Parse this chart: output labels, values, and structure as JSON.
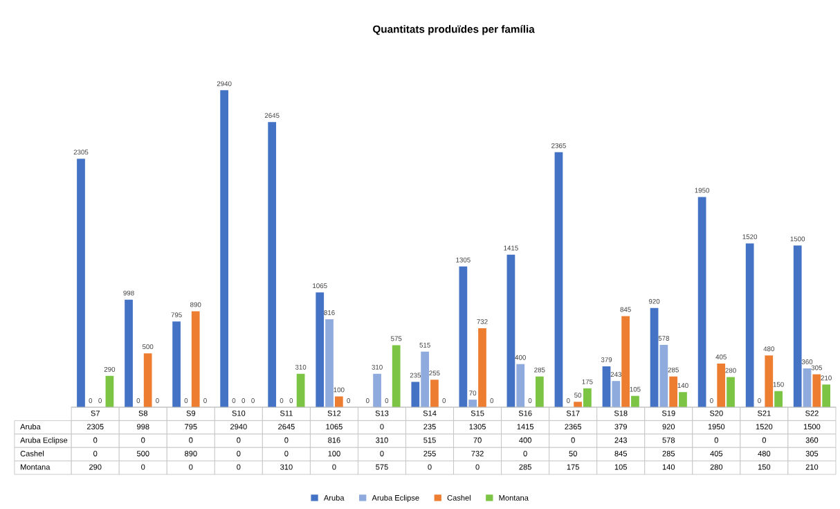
{
  "chart_data": {
    "type": "bar",
    "title": "Quantitats produïdes per família",
    "categories": [
      "S7",
      "S8",
      "S9",
      "S10",
      "S11",
      "S12",
      "S13",
      "S14",
      "S15",
      "S16",
      "S17",
      "S18",
      "S19",
      "S20",
      "S21",
      "S22"
    ],
    "series": [
      {
        "name": "Aruba",
        "color": "#4472c4",
        "values": [
          2305,
          998,
          795,
          2940,
          2645,
          1065,
          0,
          235,
          1305,
          1415,
          2365,
          379,
          920,
          1950,
          1520,
          1500
        ],
        "value_labels": [
          "2305",
          "998",
          "795",
          "2940",
          "2645",
          "1065",
          "0",
          "235",
          "1305",
          "1415",
          "2365",
          "379",
          "920",
          "1950",
          "1520",
          "1500"
        ]
      },
      {
        "name": "Aruba Eclipse",
        "color": "#8faadc",
        "values": [
          0,
          0,
          0,
          0,
          0,
          816,
          310,
          515,
          70,
          400,
          0,
          243,
          578,
          0,
          0,
          360
        ],
        "value_labels": [
          "0",
          "0",
          "0",
          "0",
          "0",
          "816",
          "310",
          "515",
          "70",
          "400",
          "0",
          "243",
          "578",
          "0",
          "0",
          "360"
        ]
      },
      {
        "name": "Cashel",
        "color": "#ed7d31",
        "values": [
          0,
          500,
          890,
          0,
          0,
          100,
          0,
          255,
          732,
          0,
          50,
          845,
          285,
          405,
          480,
          305
        ],
        "value_labels": [
          "0",
          "500",
          "890",
          "0",
          "0",
          "100",
          "0",
          "255",
          "732",
          "0",
          "50",
          "845",
          "285",
          "405",
          "480",
          "305"
        ]
      },
      {
        "name": "Montana",
        "color": "#7cc443",
        "values": [
          290,
          0,
          0,
          0,
          310,
          0,
          575,
          0,
          0,
          285,
          175,
          105,
          140,
          280,
          150,
          210
        ],
        "value_labels": [
          "290",
          "0",
          "0",
          "0",
          "310",
          "0",
          "575",
          "0",
          "0",
          "285",
          "175",
          "105",
          "140",
          "280",
          "150",
          "210"
        ]
      }
    ],
    "data_labels": true,
    "legend": "bottom"
  }
}
